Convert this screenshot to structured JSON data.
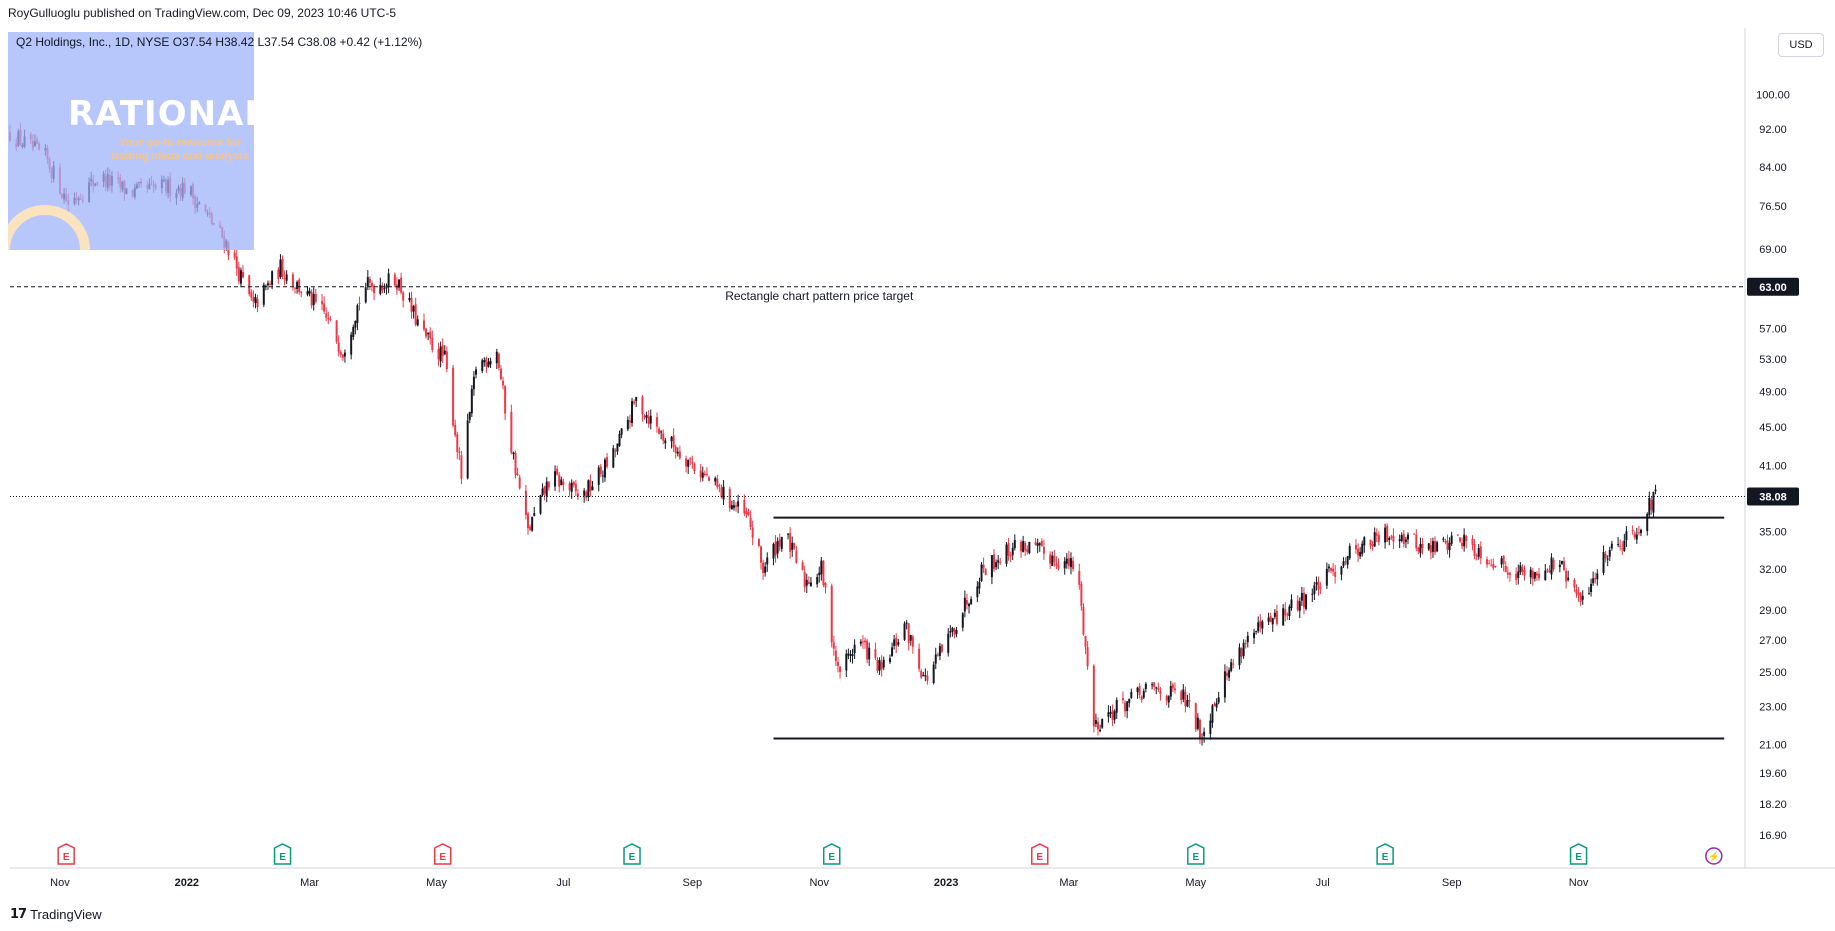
{
  "header": {
    "publish_line": "RoyGulluoglu published on TradingView.com, Dec 09, 2023 10:46 UTC-5"
  },
  "legend": {
    "text": "Q2 Holdings, Inc., 1D, NYSE  O37.54  H38.42  L37.54  C38.08  +0.42 (+1.12%)"
  },
  "logo": {
    "word": "RATIONALE",
    "tagline": "Your go-to resource for trading ideas and analysis"
  },
  "currency_button": "USD",
  "footer": {
    "brand": "TradingView"
  },
  "colors": {
    "up": "#131722",
    "down": "#f23645",
    "earnings_red": "#f23645",
    "earnings_green": "#089981",
    "dividend": "#9c27b0"
  },
  "chart_data": {
    "type": "candlestick",
    "title": "",
    "symbol": "Q2 Holdings, Inc., 1D, NYSE",
    "ohlc_last": {
      "open": 37.54,
      "high": 38.42,
      "low": 37.54,
      "close": 38.08,
      "change": 0.42,
      "change_pct": 1.12
    },
    "y_scale": "log",
    "ylim": [
      16.3,
      106
    ],
    "y_ticks": [
      "100.00",
      "92.00",
      "84.00",
      "76.50",
      "69.00",
      "63.00",
      "57.00",
      "53.00",
      "49.00",
      "45.00",
      "41.00",
      "38.08",
      "35.00",
      "32.00",
      "29.00",
      "27.00",
      "25.00",
      "23.00",
      "21.00",
      "19.60",
      "18.20",
      "16.90"
    ],
    "x_range": [
      "2021-10-08",
      "2024-01-20"
    ],
    "x_ticks": [
      {
        "label": "Nov",
        "date": "2021-11-01"
      },
      {
        "label": "2022",
        "date": "2022-01-01"
      },
      {
        "label": "Mar",
        "date": "2022-03-01"
      },
      {
        "label": "May",
        "date": "2022-05-01"
      },
      {
        "label": "Jul",
        "date": "2022-07-01"
      },
      {
        "label": "Sep",
        "date": "2022-09-01"
      },
      {
        "label": "Nov",
        "date": "2022-11-01"
      },
      {
        "label": "2023",
        "date": "2023-01-01"
      },
      {
        "label": "Mar",
        "date": "2023-03-01"
      },
      {
        "label": "May",
        "date": "2023-05-01"
      },
      {
        "label": "Jul",
        "date": "2023-07-01"
      },
      {
        "label": "Sep",
        "date": "2023-09-01"
      },
      {
        "label": "Nov",
        "date": "2023-11-01"
      }
    ],
    "price_path": [
      [
        "2021-10-08",
        91
      ],
      [
        "2021-10-25",
        86
      ],
      [
        "2021-11-05",
        77
      ],
      [
        "2021-11-20",
        82
      ],
      [
        "2021-12-05",
        79
      ],
      [
        "2021-12-20",
        80
      ],
      [
        "2022-01-01",
        80
      ],
      [
        "2022-01-20",
        70
      ],
      [
        "2022-02-02",
        60
      ],
      [
        "2022-02-15",
        66
      ],
      [
        "2022-03-08",
        59
      ],
      [
        "2022-03-17",
        54
      ],
      [
        "2022-03-27",
        63
      ],
      [
        "2022-04-12",
        64
      ],
      [
        "2022-04-25",
        56
      ],
      [
        "2022-05-05",
        53
      ],
      [
        "2022-05-13",
        40
      ],
      [
        "2022-05-20",
        52
      ],
      [
        "2022-05-30",
        54
      ],
      [
        "2022-06-05",
        44
      ],
      [
        "2022-06-14",
        35
      ],
      [
        "2022-06-25",
        40
      ],
      [
        "2022-07-10",
        38
      ],
      [
        "2022-07-25",
        42
      ],
      [
        "2022-08-05",
        48
      ],
      [
        "2022-08-18",
        44
      ],
      [
        "2022-08-28",
        42
      ],
      [
        "2022-09-12",
        39
      ],
      [
        "2022-09-28",
        36
      ],
      [
        "2022-10-05",
        32
      ],
      [
        "2022-10-15",
        35
      ],
      [
        "2022-10-25",
        31
      ],
      [
        "2022-11-02",
        32
      ],
      [
        "2022-11-10",
        25
      ],
      [
        "2022-11-20",
        27
      ],
      [
        "2022-12-01",
        25
      ],
      [
        "2022-12-12",
        28
      ],
      [
        "2022-12-22",
        24.5
      ],
      [
        "2023-01-02",
        27
      ],
      [
        "2023-01-18",
        32
      ],
      [
        "2023-02-05",
        34
      ],
      [
        "2023-02-20",
        33
      ],
      [
        "2023-03-05",
        32
      ],
      [
        "2023-03-13",
        22
      ],
      [
        "2023-03-25",
        23
      ],
      [
        "2023-04-10",
        24
      ],
      [
        "2023-04-25",
        23.5
      ],
      [
        "2023-05-04",
        21.5
      ],
      [
        "2023-05-12",
        24
      ],
      [
        "2023-05-25",
        27
      ],
      [
        "2023-06-15",
        29
      ],
      [
        "2023-07-01",
        31
      ],
      [
        "2023-07-15",
        33.5
      ],
      [
        "2023-08-05",
        35
      ],
      [
        "2023-08-20",
        33.5
      ],
      [
        "2023-09-05",
        34.5
      ],
      [
        "2023-09-22",
        32.5
      ],
      [
        "2023-10-08",
        31.5
      ],
      [
        "2023-10-22",
        32.5
      ],
      [
        "2023-11-02",
        29.5
      ],
      [
        "2023-11-15",
        33.5
      ],
      [
        "2023-11-28",
        35
      ],
      [
        "2023-12-08",
        38.08
      ]
    ],
    "horizontal_levels": [
      {
        "name": "target",
        "price": 63.0,
        "style": "dashed",
        "x_start": "2021-10-08",
        "x_end": "2024-01-20",
        "label": "Rectangle chart pattern price target",
        "label_date": "2022-11-01"
      },
      {
        "name": "resistance",
        "price": 36.2,
        "style": "solid",
        "x_start": "2022-10-10",
        "x_end": "2024-01-10"
      },
      {
        "name": "support",
        "price": 21.3,
        "style": "solid",
        "x_start": "2022-10-10",
        "x_end": "2024-01-10"
      }
    ],
    "current_price": {
      "price": 38.08,
      "label": "38.08"
    },
    "target_price_label": "63.00",
    "events": [
      {
        "date": "2021-11-04",
        "type": "earnings",
        "color": "red",
        "label": "E"
      },
      {
        "date": "2022-02-16",
        "type": "earnings",
        "color": "green",
        "label": "E"
      },
      {
        "date": "2022-05-04",
        "type": "earnings",
        "color": "red",
        "label": "E"
      },
      {
        "date": "2022-08-03",
        "type": "earnings",
        "color": "green",
        "label": "E"
      },
      {
        "date": "2022-11-07",
        "type": "earnings",
        "color": "green",
        "label": "E"
      },
      {
        "date": "2023-02-15",
        "type": "earnings",
        "color": "red",
        "label": "E"
      },
      {
        "date": "2023-05-01",
        "type": "earnings",
        "color": "green",
        "label": "E"
      },
      {
        "date": "2023-07-31",
        "type": "earnings",
        "color": "green",
        "label": "E"
      },
      {
        "date": "2023-11-01",
        "type": "earnings",
        "color": "green",
        "label": "E"
      },
      {
        "date": "2024-01-05",
        "type": "dividend",
        "color": "purple",
        "label": "⚡"
      }
    ]
  }
}
